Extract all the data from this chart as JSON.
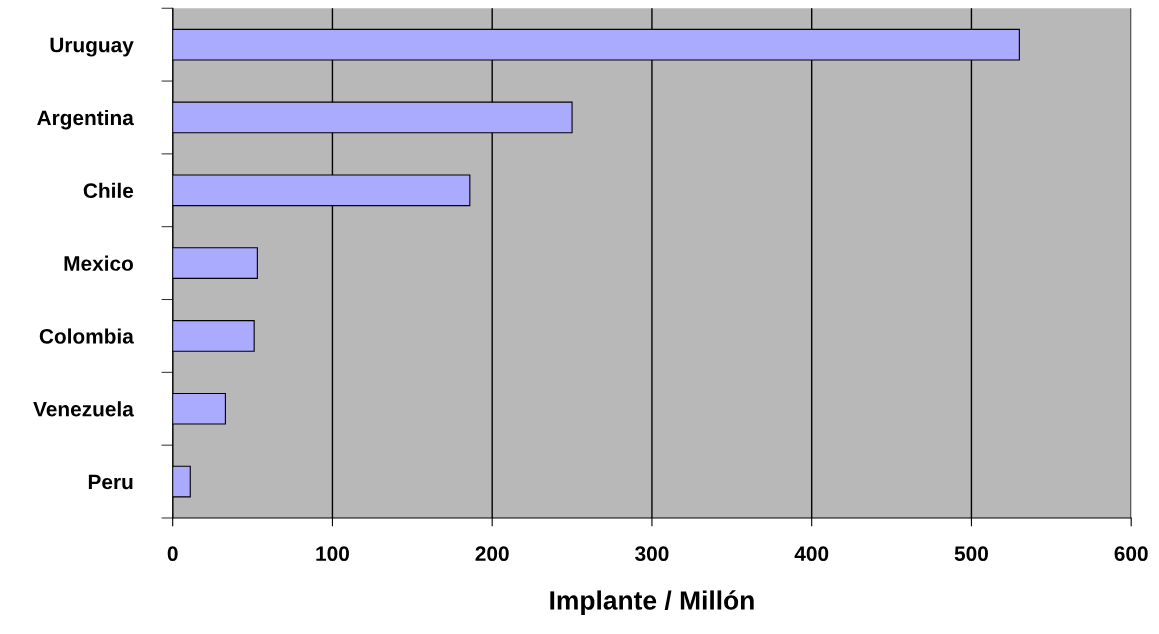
{
  "chart_data": {
    "type": "bar",
    "orientation": "horizontal",
    "xlabel": "Implante / Millón",
    "categories": [
      "Uruguay",
      "Argentina",
      "Chile",
      "Mexico",
      "Colombia",
      "Venezuela",
      "Peru"
    ],
    "values": [
      530,
      250,
      186,
      53,
      51,
      33,
      11
    ],
    "color": "#aaaaff",
    "xlim": [
      0,
      600
    ],
    "xticks": [
      0,
      100,
      200,
      300,
      400,
      500,
      600
    ],
    "grid": "x"
  }
}
